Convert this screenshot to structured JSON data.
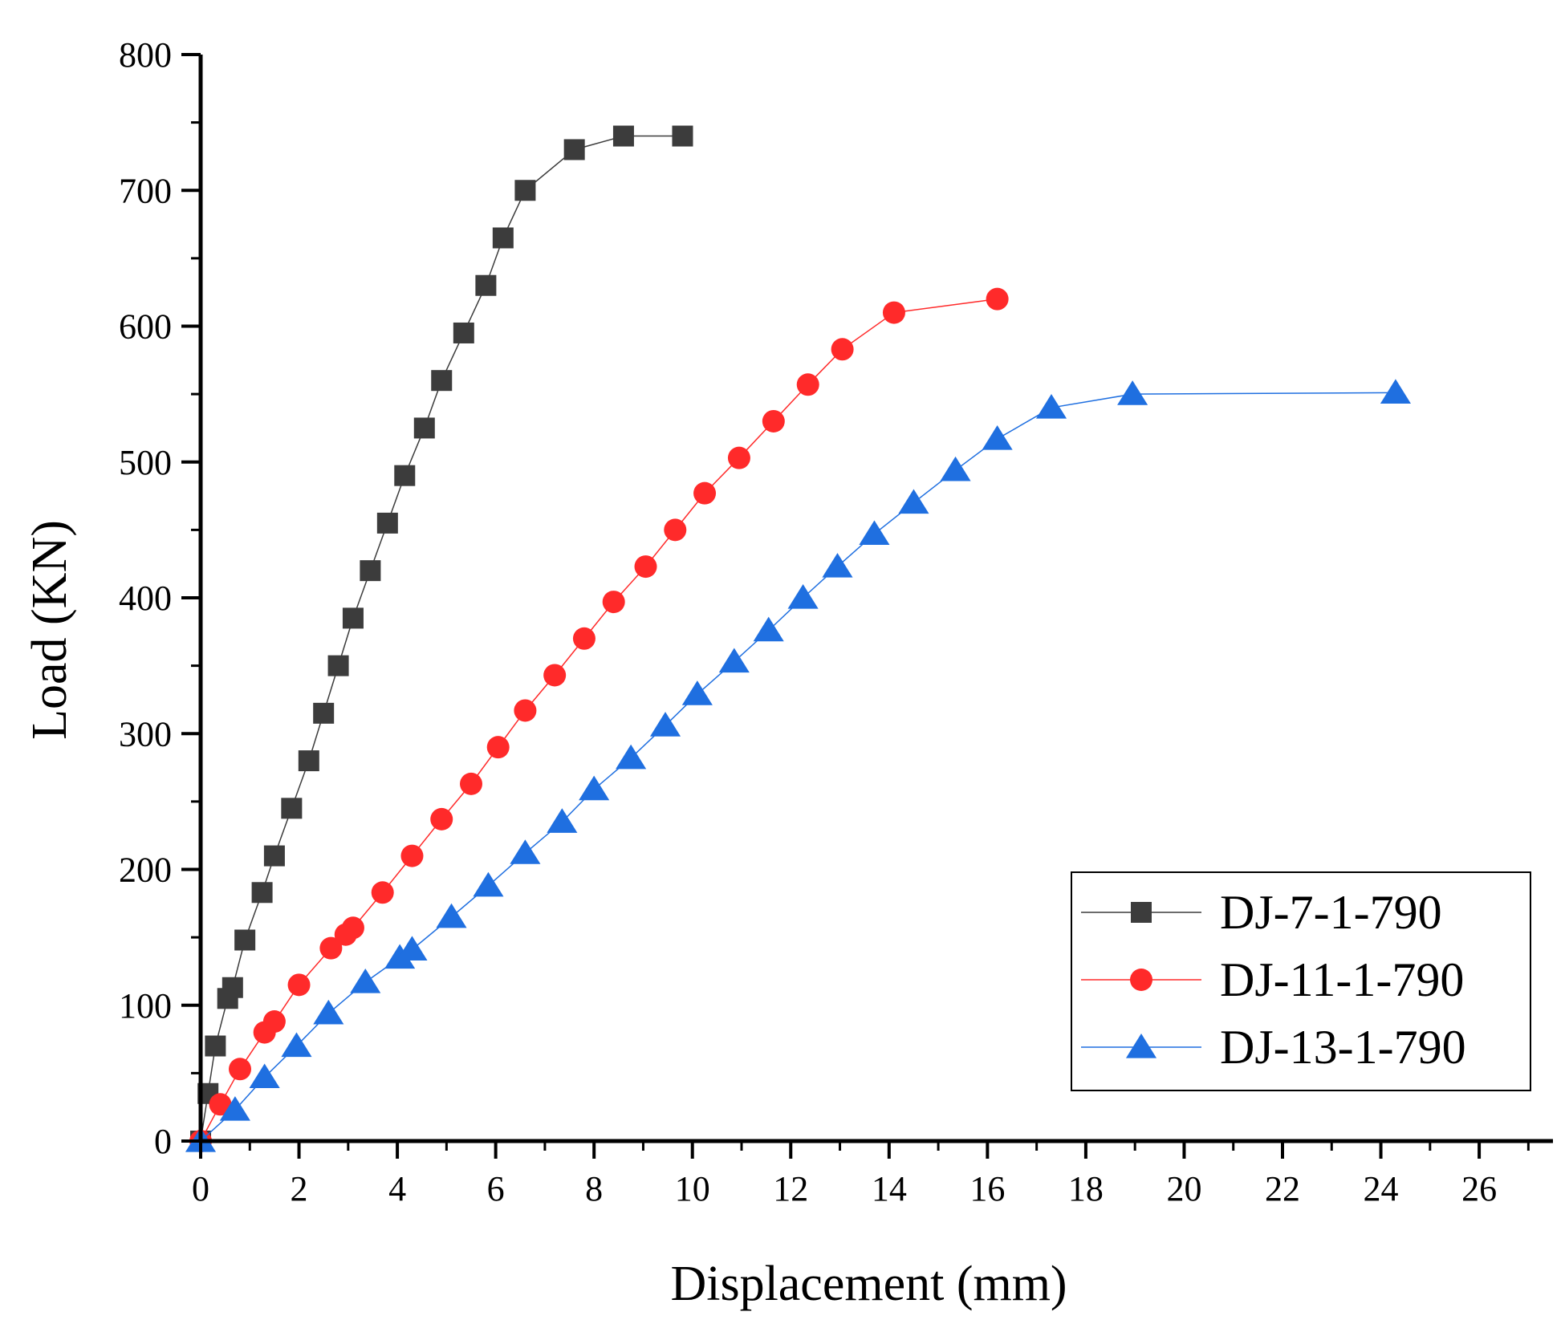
{
  "chart_data": {
    "type": "line",
    "title": "",
    "xlabel": "Displacement (mm)",
    "ylabel": "Load (KN)",
    "xlim": [
      0,
      27.5
    ],
    "ylim": [
      0,
      800
    ],
    "xticks": [
      0,
      2,
      4,
      6,
      8,
      10,
      12,
      14,
      16,
      18,
      20,
      22,
      24,
      26
    ],
    "xtick_labels": [
      "0",
      "2",
      "4",
      "6",
      "8",
      "10",
      "12",
      "14",
      "16",
      "18",
      "20",
      "22",
      "24",
      "26"
    ],
    "yticks": [
      0,
      100,
      200,
      300,
      400,
      500,
      600,
      700,
      800
    ],
    "ytick_labels": [
      "0",
      "100",
      "200",
      "300",
      "400",
      "500",
      "600",
      "700",
      "800"
    ],
    "grid": false,
    "legend_position": "bottom-right",
    "series": [
      {
        "name": "DJ-7-1-790",
        "color": "#3c3c3c",
        "marker": "square",
        "x": [
          0,
          0.15,
          0.3,
          0.55,
          0.65,
          0.9,
          1.25,
          1.5,
          1.85,
          2.2,
          2.5,
          2.8,
          3.1,
          3.45,
          3.8,
          4.15,
          4.55,
          4.9,
          5.35,
          5.8,
          6.15,
          6.6,
          7.6,
          8.6,
          9.8
        ],
        "y": [
          0,
          35,
          70,
          105,
          113,
          148,
          183,
          210,
          245,
          280,
          315,
          350,
          385,
          420,
          455,
          490,
          525,
          560,
          595,
          630,
          665,
          700,
          730,
          740,
          740
        ]
      },
      {
        "name": "DJ-11-1-790",
        "color": "#ff2a2a",
        "marker": "circle",
        "x": [
          0,
          0.4,
          0.8,
          1.3,
          1.5,
          2.0,
          2.65,
          2.95,
          3.1,
          3.7,
          4.3,
          4.9,
          5.5,
          6.05,
          6.6,
          7.2,
          7.8,
          8.4,
          9.05,
          9.65,
          10.25,
          10.95,
          11.65,
          12.35,
          13.05,
          14.1,
          16.2
        ],
        "y": [
          0,
          27,
          53,
          80,
          88,
          115,
          142,
          152,
          157,
          183,
          210,
          237,
          263,
          290,
          317,
          343,
          370,
          397,
          423,
          450,
          477,
          503,
          530,
          557,
          583,
          610,
          620
        ]
      },
      {
        "name": "DJ-13-1-790",
        "color": "#1f6fe0",
        "marker": "triangle",
        "x": [
          0,
          0.7,
          1.3,
          1.95,
          2.6,
          3.35,
          4.05,
          4.3,
          5.1,
          5.85,
          6.6,
          7.35,
          8.0,
          8.75,
          9.45,
          10.1,
          10.85,
          11.55,
          12.25,
          12.95,
          13.7,
          14.5,
          15.35,
          16.2,
          17.3,
          18.95,
          24.3
        ],
        "y": [
          0,
          23,
          47,
          70,
          94,
          117,
          135,
          141,
          165,
          188,
          212,
          235,
          259,
          282,
          306,
          329,
          353,
          376,
          400,
          423,
          447,
          470,
          494,
          517,
          540,
          550,
          551
        ]
      }
    ]
  }
}
